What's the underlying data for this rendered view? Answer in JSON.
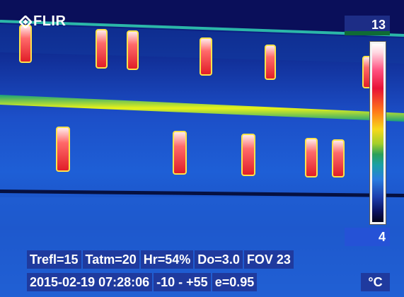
{
  "app": {
    "logo_text": "FLIR",
    "logo_icon": "flir-logo-icon"
  },
  "scale": {
    "max_value": "13",
    "min_value": "4",
    "unit": "°C",
    "palette": "iron/rainbow",
    "colors": {
      "hot": "#ff2a2a",
      "warm": "#f7d91a",
      "cool": "#1d3fae",
      "cold": "#02041c"
    }
  },
  "parameters": {
    "trefl": "Trefl=15",
    "tatm": "Tatm=20",
    "hr": "Hr=54%",
    "do": "Do=3.0",
    "fov": "FOV 23"
  },
  "status": {
    "timestamp": "2015-02-19 07:28:06",
    "range": "-10 -  +55",
    "emissivity": "e=0.95"
  },
  "colors": {
    "background_blue": "#142a8c",
    "info_box": "#1f3a9e",
    "window_hot": "#ff3b3b",
    "ledge_yellow": "#e8f21a"
  }
}
